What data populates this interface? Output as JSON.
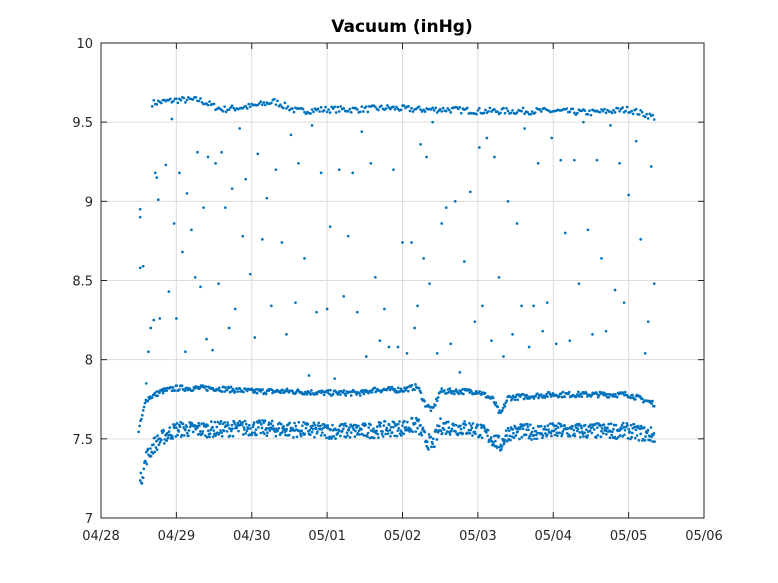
{
  "chart_data": {
    "type": "scatter",
    "title": "Vacuum (inHg)",
    "xlabel": "",
    "ylabel": "",
    "x_unit": "day",
    "x_start_label": "04/28",
    "x_ticks": [
      "04/28",
      "04/29",
      "04/30",
      "05/01",
      "05/02",
      "05/03",
      "05/04",
      "05/05",
      "05/06"
    ],
    "y_ticks": [
      "7",
      "7.5",
      "8",
      "8.5",
      "9",
      "9.5",
      "10"
    ],
    "xlim": [
      0,
      8
    ],
    "ylim": [
      7,
      10
    ],
    "grid": true,
    "box": true,
    "marker_color": "#0072BD",
    "data_end": 7.35,
    "upper_band": [
      [
        0.68,
        9.62
      ],
      [
        1.0,
        9.64
      ],
      [
        1.3,
        9.64
      ],
      [
        1.6,
        9.58
      ],
      [
        2.0,
        9.6
      ],
      [
        2.3,
        9.63
      ],
      [
        2.6,
        9.57
      ],
      [
        3.0,
        9.58
      ],
      [
        3.4,
        9.58
      ],
      [
        3.8,
        9.59
      ],
      [
        4.2,
        9.58
      ],
      [
        4.6,
        9.58
      ],
      [
        5.0,
        9.57
      ],
      [
        5.5,
        9.57
      ],
      [
        6.0,
        9.57
      ],
      [
        6.5,
        9.56
      ],
      [
        7.0,
        9.58
      ],
      [
        7.35,
        9.53
      ]
    ],
    "middle_band": [
      [
        0.5,
        7.55
      ],
      [
        0.6,
        7.75
      ],
      [
        0.8,
        7.8
      ],
      [
        1.0,
        7.82
      ],
      [
        1.5,
        7.82
      ],
      [
        2.0,
        7.8
      ],
      [
        2.5,
        7.8
      ],
      [
        3.0,
        7.79
      ],
      [
        3.5,
        7.79
      ],
      [
        3.6,
        7.81
      ],
      [
        4.0,
        7.81
      ],
      [
        4.2,
        7.83
      ],
      [
        4.3,
        7.72
      ],
      [
        4.4,
        7.68
      ],
      [
        4.5,
        7.8
      ],
      [
        5.0,
        7.8
      ],
      [
        5.2,
        7.75
      ],
      [
        5.3,
        7.65
      ],
      [
        5.4,
        7.76
      ],
      [
        6.0,
        7.78
      ],
      [
        7.0,
        7.78
      ],
      [
        7.35,
        7.72
      ]
    ],
    "lower_band": [
      [
        0.52,
        7.22
      ],
      [
        0.6,
        7.38
      ],
      [
        0.7,
        7.46
      ],
      [
        0.85,
        7.52
      ],
      [
        1.0,
        7.56
      ],
      [
        1.5,
        7.56
      ],
      [
        2.0,
        7.57
      ],
      [
        2.5,
        7.56
      ],
      [
        3.0,
        7.55
      ],
      [
        3.5,
        7.55
      ],
      [
        4.0,
        7.57
      ],
      [
        4.2,
        7.59
      ],
      [
        4.3,
        7.5
      ],
      [
        4.4,
        7.46
      ],
      [
        4.5,
        7.58
      ],
      [
        5.0,
        7.56
      ],
      [
        5.2,
        7.5
      ],
      [
        5.3,
        7.46
      ],
      [
        5.4,
        7.54
      ],
      [
        6.0,
        7.55
      ],
      [
        7.0,
        7.55
      ],
      [
        7.35,
        7.52
      ]
    ],
    "scattered_points": [
      [
        0.52,
        8.9
      ],
      [
        0.52,
        8.95
      ],
      [
        0.52,
        8.58
      ],
      [
        0.56,
        8.59
      ],
      [
        0.6,
        7.85
      ],
      [
        0.63,
        8.05
      ],
      [
        0.66,
        8.2
      ],
      [
        0.7,
        8.25
      ],
      [
        0.72,
        9.18
      ],
      [
        0.74,
        9.15
      ],
      [
        0.76,
        9.01
      ],
      [
        0.78,
        8.26
      ],
      [
        0.82,
        7.8
      ],
      [
        0.86,
        9.23
      ],
      [
        0.9,
        8.43
      ],
      [
        0.94,
        9.52
      ],
      [
        0.97,
        8.86
      ],
      [
        1.0,
        8.26
      ],
      [
        1.04,
        9.18
      ],
      [
        1.08,
        8.68
      ],
      [
        1.12,
        8.05
      ],
      [
        1.14,
        9.05
      ],
      [
        1.2,
        8.82
      ],
      [
        1.25,
        8.52
      ],
      [
        1.28,
        9.31
      ],
      [
        1.32,
        8.46
      ],
      [
        1.36,
        8.96
      ],
      [
        1.4,
        8.13
      ],
      [
        1.42,
        9.28
      ],
      [
        1.48,
        8.06
      ],
      [
        1.52,
        9.24
      ],
      [
        1.56,
        8.48
      ],
      [
        1.6,
        9.31
      ],
      [
        1.65,
        8.96
      ],
      [
        1.7,
        8.2
      ],
      [
        1.74,
        9.08
      ],
      [
        1.78,
        8.32
      ],
      [
        1.84,
        9.46
      ],
      [
        1.88,
        8.78
      ],
      [
        1.92,
        9.14
      ],
      [
        1.98,
        8.54
      ],
      [
        2.04,
        8.14
      ],
      [
        2.08,
        9.3
      ],
      [
        2.14,
        8.76
      ],
      [
        2.2,
        9.02
      ],
      [
        2.26,
        8.34
      ],
      [
        2.32,
        9.2
      ],
      [
        2.4,
        8.74
      ],
      [
        2.46,
        8.16
      ],
      [
        2.52,
        9.42
      ],
      [
        2.58,
        8.36
      ],
      [
        2.62,
        9.24
      ],
      [
        2.7,
        8.64
      ],
      [
        2.76,
        7.9
      ],
      [
        2.8,
        9.48
      ],
      [
        2.86,
        8.3
      ],
      [
        2.92,
        9.18
      ],
      [
        3.0,
        8.32
      ],
      [
        3.04,
        8.84
      ],
      [
        3.1,
        7.88
      ],
      [
        3.16,
        9.2
      ],
      [
        3.22,
        8.4
      ],
      [
        3.28,
        8.78
      ],
      [
        3.34,
        9.18
      ],
      [
        3.4,
        8.3
      ],
      [
        3.46,
        9.44
      ],
      [
        3.52,
        8.02
      ],
      [
        3.58,
        9.24
      ],
      [
        3.64,
        8.52
      ],
      [
        3.7,
        8.12
      ],
      [
        3.76,
        8.32
      ],
      [
        3.82,
        8.08
      ],
      [
        3.88,
        9.2
      ],
      [
        3.94,
        8.08
      ],
      [
        4.0,
        8.74
      ],
      [
        4.06,
        8.04
      ],
      [
        4.12,
        8.74
      ],
      [
        4.16,
        8.2
      ],
      [
        4.2,
        8.34
      ],
      [
        4.24,
        9.36
      ],
      [
        4.28,
        8.64
      ],
      [
        4.32,
        9.28
      ],
      [
        4.36,
        8.48
      ],
      [
        4.4,
        9.5
      ],
      [
        4.46,
        8.04
      ],
      [
        4.52,
        8.86
      ],
      [
        4.58,
        8.96
      ],
      [
        4.64,
        8.1
      ],
      [
        4.7,
        9.0
      ],
      [
        4.76,
        7.92
      ],
      [
        4.82,
        8.62
      ],
      [
        4.9,
        9.06
      ],
      [
        4.96,
        8.24
      ],
      [
        5.02,
        9.34
      ],
      [
        5.06,
        8.34
      ],
      [
        5.12,
        9.4
      ],
      [
        5.18,
        8.12
      ],
      [
        5.22,
        9.28
      ],
      [
        5.28,
        8.52
      ],
      [
        5.34,
        8.02
      ],
      [
        5.4,
        9.0
      ],
      [
        5.46,
        8.16
      ],
      [
        5.52,
        8.86
      ],
      [
        5.58,
        8.34
      ],
      [
        5.62,
        9.46
      ],
      [
        5.68,
        8.08
      ],
      [
        5.74,
        8.34
      ],
      [
        5.8,
        9.24
      ],
      [
        5.86,
        8.18
      ],
      [
        5.92,
        8.36
      ],
      [
        5.98,
        9.4
      ],
      [
        6.04,
        8.1
      ],
      [
        6.1,
        9.26
      ],
      [
        6.16,
        8.8
      ],
      [
        6.22,
        8.12
      ],
      [
        6.28,
        9.26
      ],
      [
        6.34,
        8.48
      ],
      [
        6.4,
        9.5
      ],
      [
        6.46,
        8.82
      ],
      [
        6.52,
        8.16
      ],
      [
        6.58,
        9.26
      ],
      [
        6.64,
        8.64
      ],
      [
        6.7,
        8.18
      ],
      [
        6.76,
        9.48
      ],
      [
        6.82,
        8.44
      ],
      [
        6.88,
        9.24
      ],
      [
        6.94,
        8.36
      ],
      [
        7.0,
        9.04
      ],
      [
        7.06,
        7.76
      ],
      [
        7.1,
        9.38
      ],
      [
        7.16,
        8.76
      ],
      [
        7.22,
        8.04
      ],
      [
        7.26,
        8.24
      ],
      [
        7.3,
        9.22
      ],
      [
        7.34,
        8.48
      ]
    ]
  }
}
